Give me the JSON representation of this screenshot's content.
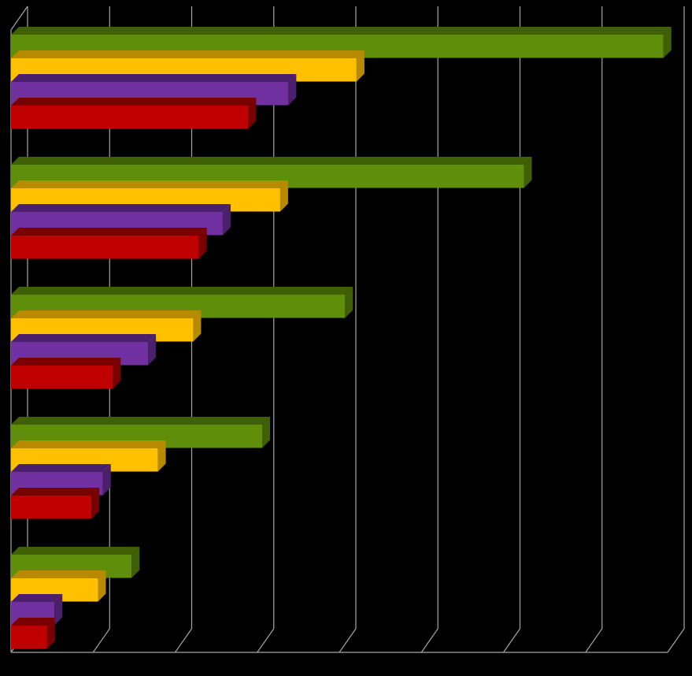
{
  "chart_data": {
    "type": "bar",
    "orientation": "horizontal",
    "style": "3d",
    "title": "",
    "xlabel": "",
    "ylabel": "",
    "xlim": [
      0,
      8
    ],
    "grid": true,
    "legend": "none",
    "background": "#000000",
    "gridline_color": "#a6a6a6",
    "groups": 5,
    "series": [
      {
        "color": "#5f8f0a",
        "side_color": "#3f6006",
        "values": [
          7.95,
          6.25,
          4.07,
          3.06,
          1.47
        ]
      },
      {
        "color": "#ffc000",
        "side_color": "#b88a00",
        "values": [
          4.21,
          3.28,
          2.22,
          1.79,
          1.06
        ]
      },
      {
        "color": "#7030a0",
        "side_color": "#4a1f6b",
        "values": [
          3.38,
          2.58,
          1.67,
          1.12,
          0.53
        ]
      },
      {
        "color": "#c00000",
        "side_color": "#7a0000",
        "values": [
          2.89,
          2.29,
          1.24,
          0.98,
          0.44
        ]
      }
    ]
  }
}
